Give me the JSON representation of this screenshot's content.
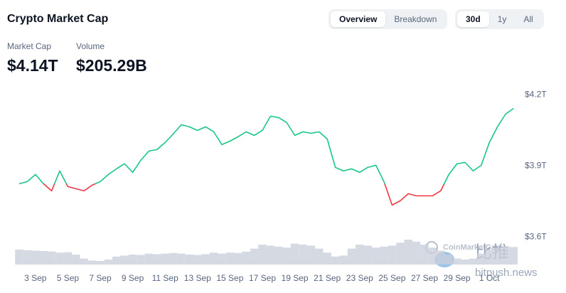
{
  "header": {
    "title": "Crypto Market Cap",
    "tabs": [
      "Overview",
      "Breakdown"
    ],
    "active_tab": 0,
    "ranges": [
      "30d",
      "1y",
      "All"
    ],
    "active_range": 0,
    "stats": [
      {
        "label": "Market Cap",
        "value": "$4.14T"
      },
      {
        "label": "Volume",
        "value": "$205.29B"
      }
    ]
  },
  "watermark": {
    "brand": "CoinMarketCap",
    "cn": "比推",
    "site": "bitpush.news"
  },
  "chart_data": {
    "type": "line",
    "categories": [
      null,
      null,
      "3 Sep",
      null,
      null,
      null,
      "5 Sep",
      null,
      null,
      null,
      "7 Sep",
      null,
      null,
      null,
      "9 Sep",
      null,
      null,
      null,
      "11 Sep",
      null,
      null,
      null,
      "13 Sep",
      null,
      null,
      null,
      "15 Sep",
      null,
      null,
      null,
      "17 Sep",
      null,
      null,
      null,
      "19 Sep",
      null,
      null,
      null,
      "21 Sep",
      null,
      null,
      null,
      "23 Sep",
      null,
      null,
      null,
      "25 Sep",
      null,
      null,
      null,
      "27 Sep",
      null,
      null,
      null,
      "29 Sep",
      null,
      null,
      null,
      "1 Oct",
      null,
      null,
      null
    ],
    "values": [
      3.825,
      3.834,
      3.864,
      3.825,
      3.795,
      3.879,
      3.813,
      3.804,
      3.795,
      3.819,
      3.834,
      3.864,
      3.888,
      3.909,
      3.873,
      3.924,
      3.963,
      3.969,
      3.999,
      4.035,
      4.074,
      4.065,
      4.05,
      4.065,
      4.044,
      3.99,
      4.005,
      4.023,
      4.044,
      4.029,
      4.05,
      4.11,
      4.104,
      4.083,
      4.029,
      4.044,
      4.038,
      4.044,
      4.014,
      3.894,
      3.879,
      3.888,
      3.873,
      3.894,
      3.903,
      3.834,
      3.735,
      3.753,
      3.783,
      3.774,
      3.774,
      3.774,
      3.795,
      3.864,
      3.909,
      3.915,
      3.879,
      3.903,
      3.999,
      4.065,
      4.119,
      4.143
    ],
    "up_color": "#16c784",
    "down_color": "#ea3943",
    "ylim": [
      3.5,
      4.25
    ],
    "yticks": [
      {
        "value": 4.2,
        "label": "$4.2T"
      },
      {
        "value": 3.9,
        "label": "$3.9T"
      },
      {
        "value": 3.6,
        "label": "$3.6T"
      }
    ],
    "grid": false,
    "volume": {
      "color": "#c9cfdb",
      "values": [
        75,
        72,
        70,
        68,
        66,
        60,
        62,
        50,
        30,
        20,
        18,
        25,
        40,
        45,
        50,
        48,
        55,
        52,
        55,
        58,
        55,
        50,
        48,
        52,
        60,
        55,
        60,
        58,
        65,
        80,
        100,
        95,
        90,
        85,
        105,
        100,
        95,
        80,
        60,
        40,
        45,
        80,
        100,
        95,
        85,
        90,
        95,
        110,
        125,
        115,
        100,
        85,
        70,
        50,
        30,
        25,
        30,
        55,
        75,
        85,
        90,
        88
      ]
    },
    "y2lim": [
      0,
      150
    ]
  }
}
